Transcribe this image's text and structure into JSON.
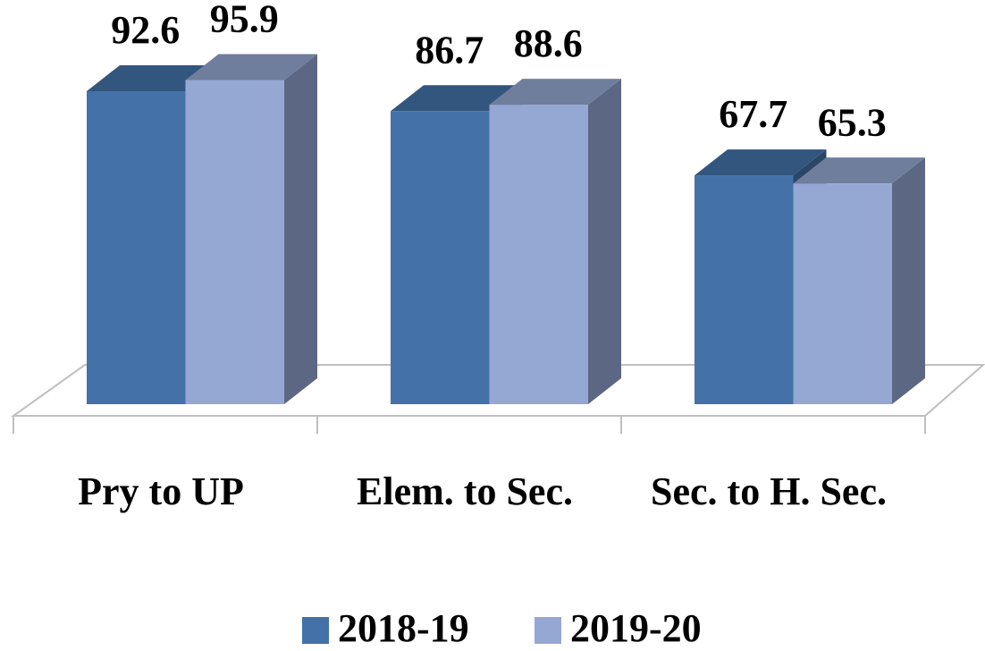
{
  "chart_data": {
    "type": "bar3d",
    "categories": [
      "Pry to UP",
      "Elem. to Sec.",
      "Sec. to H. Sec."
    ],
    "series": [
      {
        "name": "2018-19",
        "color": "#4472a8",
        "values": [
          92.6,
          86.7,
          67.7
        ]
      },
      {
        "name": "2019-20",
        "color": "#95a8d3",
        "values": [
          95.9,
          88.6,
          65.3
        ]
      }
    ],
    "ylim": [
      0,
      100
    ]
  }
}
